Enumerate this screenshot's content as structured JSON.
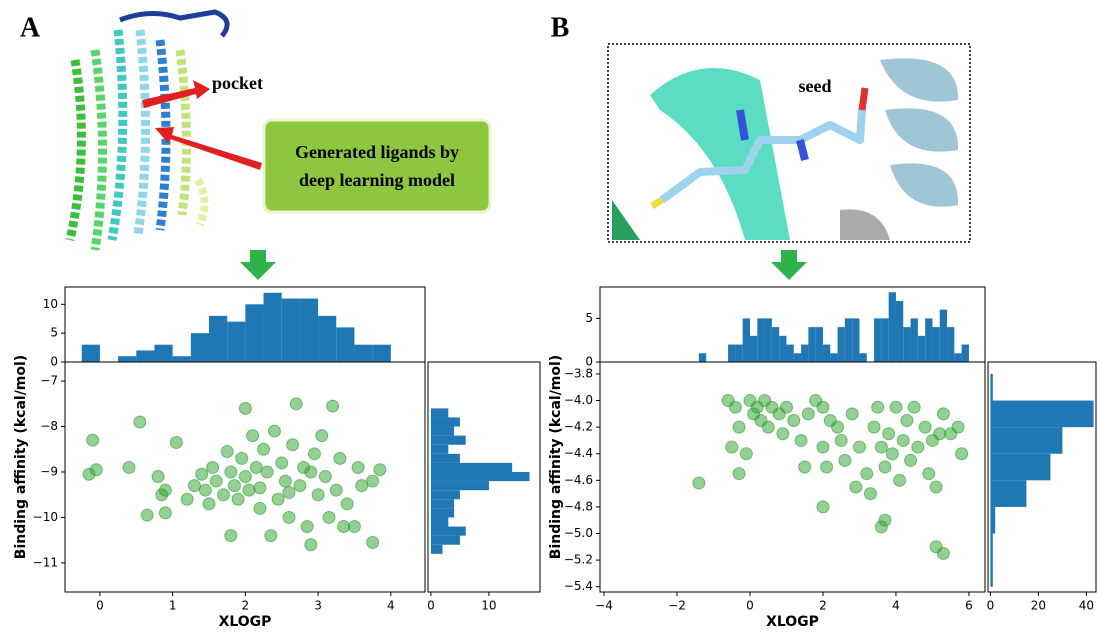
{
  "chart_data": [
    {
      "type": "jointplot",
      "label": "A",
      "annotations": [
        "pocket",
        "Generated ligands by",
        "deep learning model"
      ],
      "xlabel": "XLOGP",
      "ylabel": "Binding affinity (kcal/mol)",
      "color": "#2ca02c",
      "hist_color": "#1f77b4",
      "xlim": [
        -0.48,
        4.47
      ],
      "ylim": [
        -11.64,
        -6.58
      ],
      "xticks": [
        0,
        1,
        2,
        3,
        4
      ],
      "yticks": [
        {
          "value": -7,
          "label": "−7"
        },
        {
          "value": -8,
          "label": "−8"
        },
        {
          "value": -9,
          "label": "−9"
        },
        {
          "value": -10,
          "label": "−10"
        },
        {
          "value": -11,
          "label": "−11"
        }
      ],
      "x": [
        -0.1,
        -0.15,
        -0.05,
        0.4,
        0.55,
        0.8,
        0.85,
        0.65,
        0.9,
        1.05,
        1.2,
        1.3,
        1.4,
        1.45,
        1.5,
        1.55,
        1.6,
        1.7,
        1.75,
        1.8,
        1.85,
        1.9,
        1.95,
        2.0,
        2.0,
        2.05,
        2.1,
        2.15,
        2.2,
        2.25,
        2.3,
        2.35,
        2.4,
        2.45,
        2.5,
        2.55,
        2.6,
        2.65,
        2.7,
        2.75,
        2.8,
        2.85,
        2.9,
        2.95,
        3.0,
        3.05,
        3.1,
        3.15,
        3.2,
        3.25,
        3.3,
        3.35,
        3.4,
        3.5,
        3.55,
        3.6,
        3.75,
        3.85,
        3.75,
        2.9,
        1.8,
        0.9,
        2.2,
        2.6
      ],
      "y": [
        -8.3,
        -9.05,
        -8.95,
        -8.9,
        -7.9,
        -9.1,
        -9.5,
        -9.95,
        -9.9,
        -8.35,
        -9.6,
        -9.3,
        -9.05,
        -9.4,
        -9.7,
        -8.9,
        -9.2,
        -9.5,
        -8.55,
        -9.0,
        -9.3,
        -9.6,
        -8.7,
        -7.6,
        -9.1,
        -9.4,
        -8.2,
        -8.9,
        -9.8,
        -8.5,
        -9.0,
        -10.4,
        -8.1,
        -9.6,
        -8.8,
        -9.2,
        -10.0,
        -8.4,
        -7.5,
        -9.3,
        -8.9,
        -10.2,
        -9.0,
        -8.6,
        -9.5,
        -8.2,
        -9.1,
        -10.0,
        -7.55,
        -9.4,
        -8.7,
        -10.2,
        -9.7,
        -10.2,
        -8.9,
        -9.3,
        -9.2,
        -8.95,
        -10.55,
        -10.6,
        -10.4,
        -9.4,
        -9.35,
        -9.45
      ],
      "top_hist": {
        "bins": [
          -0.25,
          0.0,
          0.25,
          0.5,
          0.75,
          1.0,
          1.25,
          1.5,
          1.75,
          2.0,
          2.25,
          2.5,
          2.75,
          3.0,
          3.25,
          3.5,
          3.75,
          4.0
        ],
        "values": [
          3,
          0,
          1,
          2,
          3,
          1,
          5,
          8,
          7,
          10,
          12,
          11,
          11,
          8,
          6,
          3,
          3
        ],
        "ylim": [
          0,
          13
        ],
        "yticks": [
          0,
          5,
          10
        ]
      },
      "right_hist": {
        "bins": [
          -10.8,
          -10.6,
          -10.4,
          -10.2,
          -10.0,
          -9.8,
          -9.6,
          -9.4,
          -9.2,
          -9.0,
          -8.8,
          -8.6,
          -8.4,
          -8.2,
          -8.0,
          -7.8,
          -7.6
        ],
        "values": [
          2,
          5,
          6,
          3,
          4,
          4,
          5,
          10,
          17,
          14,
          5,
          3,
          6,
          4,
          5,
          3
        ],
        "xlim": [
          -0.5,
          18.8
        ],
        "xticks": [
          0,
          10
        ]
      }
    },
    {
      "type": "jointplot",
      "label": "B",
      "annotations": [
        "seed"
      ],
      "xlabel": "XLOGP",
      "ylabel": "Binding affinity (kcal/mol)",
      "color": "#2ca02c",
      "hist_color": "#1f77b4",
      "xlim": [
        -4.11,
        6.44
      ],
      "ylim": [
        -5.44,
        -3.71
      ],
      "xticks": [
        {
          "value": -4,
          "label": "−4"
        },
        {
          "value": -2,
          "label": "−2"
        },
        0,
        2,
        4,
        6
      ],
      "yticks": [
        {
          "value": -3.8,
          "label": "−3.8"
        },
        {
          "value": -4.0,
          "label": "−4.0"
        },
        {
          "value": -4.2,
          "label": "−4.2"
        },
        {
          "value": -4.4,
          "label": "−4.4"
        },
        {
          "value": -4.6,
          "label": "−4.6"
        },
        {
          "value": -4.8,
          "label": "−4.8"
        },
        {
          "value": -5.0,
          "label": "−5.0"
        },
        {
          "value": -5.2,
          "label": "−5.2"
        },
        {
          "value": -5.4,
          "label": "−5.4"
        }
      ],
      "x": [
        -1.4,
        -0.6,
        -0.4,
        -0.3,
        -0.5,
        -0.3,
        0.0,
        0.1,
        0.2,
        0.3,
        0.4,
        0.6,
        0.8,
        1.0,
        1.2,
        0.5,
        0.9,
        1.4,
        1.6,
        1.8,
        2.0,
        2.2,
        2.0,
        2.1,
        2.4,
        2.5,
        2.6,
        2.8,
        2.9,
        3.0,
        3.2,
        3.3,
        3.4,
        3.5,
        3.6,
        3.7,
        3.8,
        3.9,
        4.0,
        4.1,
        4.2,
        4.3,
        4.4,
        4.5,
        4.6,
        4.8,
        4.9,
        5.0,
        5.1,
        5.2,
        5.3,
        5.5,
        5.7,
        5.8,
        5.1,
        5.3,
        3.6,
        3.7,
        2.0,
        -0.1,
        1.5
      ],
      "y": [
        -4.62,
        -4.0,
        -4.05,
        -4.2,
        -4.35,
        -4.55,
        -4.0,
        -4.1,
        -4.05,
        -4.15,
        -4.0,
        -4.05,
        -4.1,
        -4.05,
        -4.15,
        -4.2,
        -4.25,
        -4.3,
        -4.1,
        -4.0,
        -4.05,
        -4.15,
        -4.35,
        -4.5,
        -4.2,
        -4.3,
        -4.45,
        -4.1,
        -4.65,
        -4.35,
        -4.55,
        -4.7,
        -4.2,
        -4.05,
        -4.35,
        -4.5,
        -4.25,
        -4.4,
        -4.05,
        -4.6,
        -4.3,
        -4.15,
        -4.45,
        -4.05,
        -4.35,
        -4.2,
        -4.55,
        -4.3,
        -4.65,
        -4.25,
        -4.1,
        -4.25,
        -4.2,
        -4.4,
        -5.1,
        -5.15,
        -4.95,
        -4.9,
        -4.8,
        -4.4,
        -4.5
      ],
      "top_hist": {
        "bins": [
          -1.4,
          -1.2,
          -1.0,
          -0.8,
          -0.6,
          -0.4,
          -0.2,
          0.0,
          0.2,
          0.4,
          0.6,
          0.8,
          1.0,
          1.2,
          1.4,
          1.6,
          1.8,
          2.0,
          2.2,
          2.4,
          2.6,
          2.8,
          3.0,
          3.2,
          3.4,
          3.6,
          3.8,
          4.0,
          4.2,
          4.4,
          4.6,
          4.8,
          5.0,
          5.2,
          5.4,
          5.6,
          5.8,
          6.0
        ],
        "values": [
          1,
          0,
          0,
          0,
          2,
          2,
          5,
          3,
          5,
          5,
          4,
          3,
          2,
          1,
          2,
          4,
          4,
          2,
          1,
          4,
          5,
          5,
          1,
          0,
          5,
          5,
          8,
          7,
          4,
          5,
          3,
          5,
          4,
          6,
          4,
          1,
          2
        ],
        "ylim": [
          0,
          8.6
        ],
        "yticks": [
          0,
          5
        ]
      },
      "right_hist": {
        "bins": [
          -5.4,
          -5.2,
          -5.0,
          -4.8,
          -4.6,
          -4.4,
          -4.2,
          -4.0,
          -3.8
        ],
        "values": [
          1,
          1,
          2,
          15,
          25,
          30,
          43,
          1
        ],
        "xlim": [
          -1,
          44
        ],
        "xticks": [
          0,
          20,
          40
        ]
      }
    }
  ]
}
